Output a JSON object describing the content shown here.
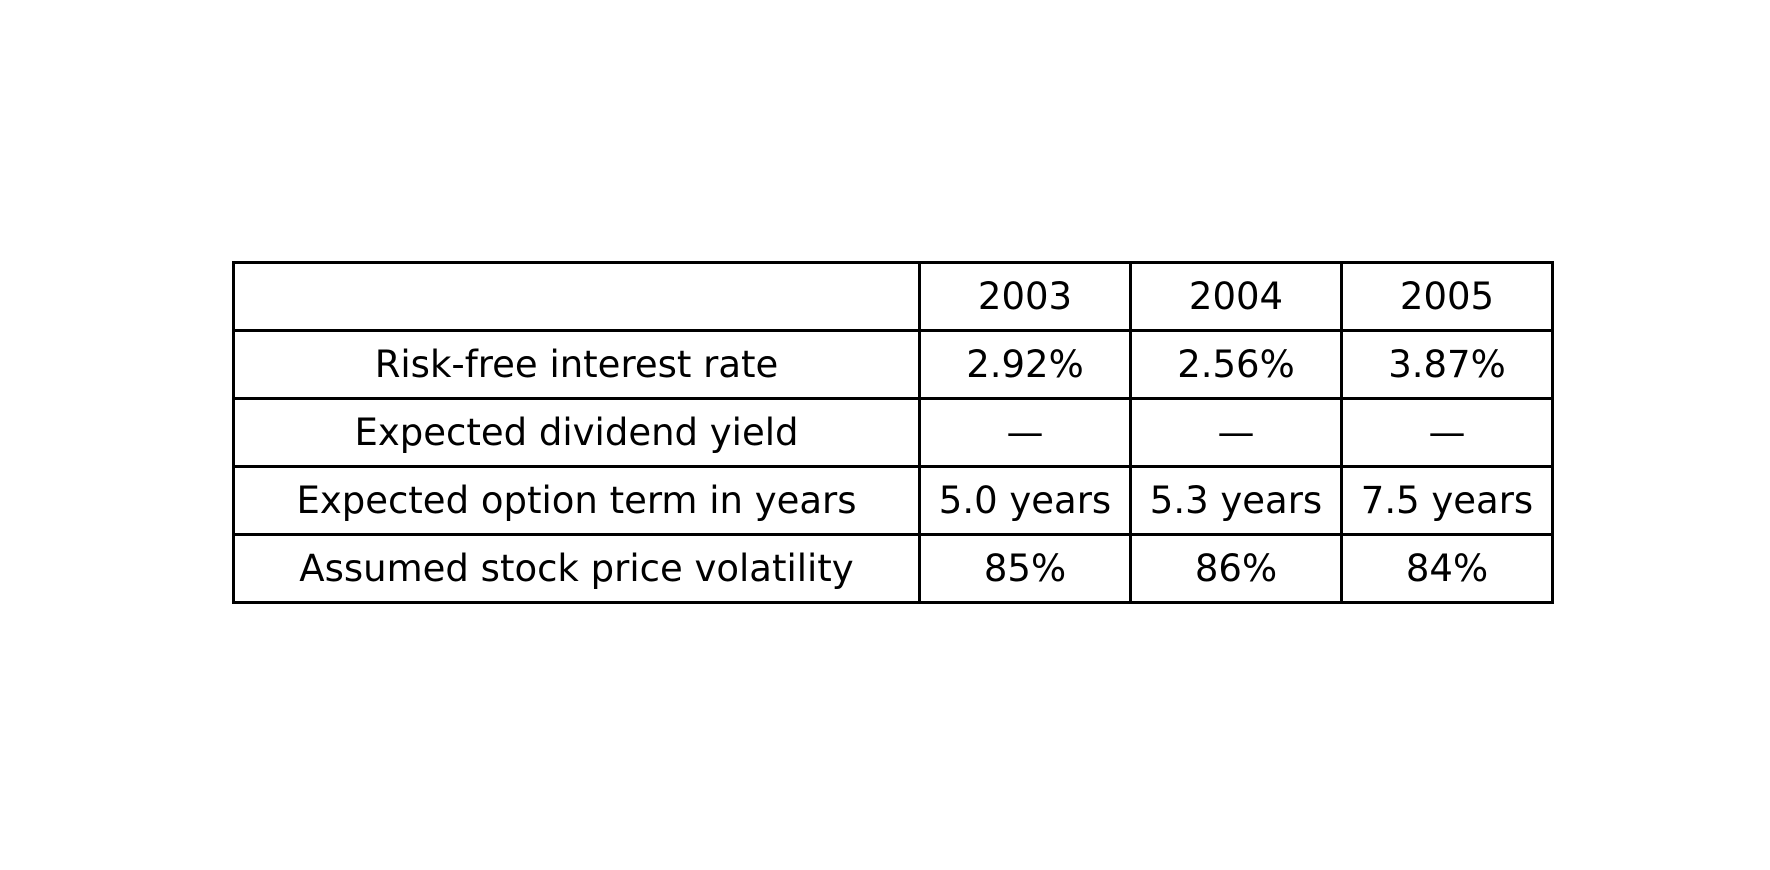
{
  "chart_data": {
    "type": "table",
    "columns": [
      "",
      "2003",
      "2004",
      "2005"
    ],
    "rows": [
      {
        "label": "Risk-free interest rate",
        "values": [
          "2.92%",
          "2.56%",
          "3.87%"
        ]
      },
      {
        "label": "Expected dividend yield",
        "values": [
          "—",
          "—",
          "—"
        ]
      },
      {
        "label": "Expected option term in years",
        "values": [
          "5.0 years",
          "5.3 years",
          "7.5 years"
        ]
      },
      {
        "label": "Assumed stock price volatility",
        "values": [
          "85%",
          "86%",
          "84%"
        ]
      }
    ]
  }
}
